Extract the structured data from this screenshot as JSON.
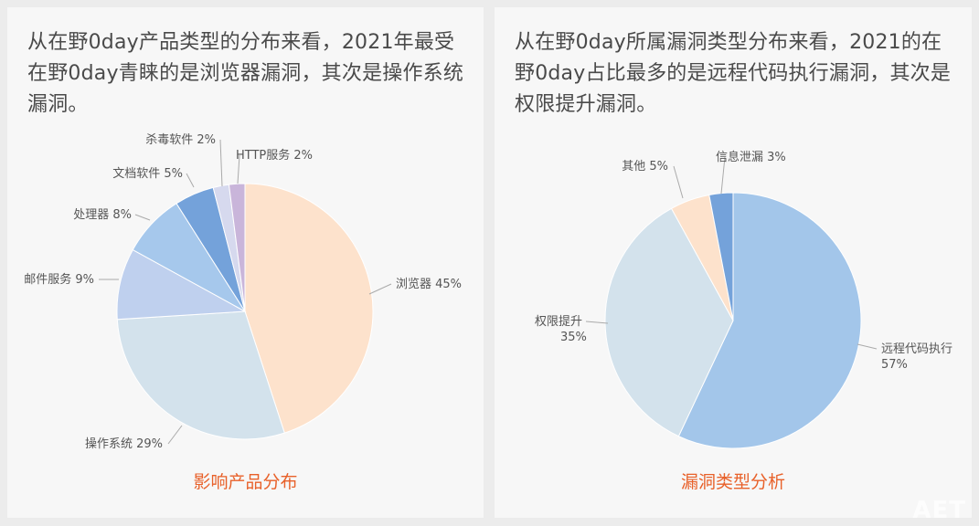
{
  "panels": [
    {
      "description": "从在野0day产品类型的分布来看，2021年最受在野0day青睐的是浏览器漏洞，其次是操作系统漏洞。",
      "chart_title": "影响产品分布"
    },
    {
      "description": "从在野0day所属漏洞类型分布来看，2021的在野0day占比最多的是远程代码执行漏洞，其次是权限提升漏洞。",
      "chart_title": "漏洞类型分析"
    }
  ],
  "watermark": "AET",
  "chart_data": [
    {
      "type": "pie",
      "title": "影响产品分布",
      "slices": [
        {
          "label": "浏览器",
          "value": 45,
          "value_text": "45%",
          "color": "#fde2cc"
        },
        {
          "label": "操作系统",
          "value": 29,
          "value_text": "29%",
          "color": "#d3e2ec"
        },
        {
          "label": "邮件服务",
          "value": 9,
          "value_text": "9%",
          "color": "#bfd0ee"
        },
        {
          "label": "处理器",
          "value": 8,
          "value_text": "8%",
          "color": "#a6c8ec"
        },
        {
          "label": "文档软件",
          "value": 5,
          "value_text": "5%",
          "color": "#74a2da"
        },
        {
          "label": "杀毒软件",
          "value": 2,
          "value_text": "2%",
          "color": "#d6d9ee"
        },
        {
          "label": "HTTP服务",
          "value": 2,
          "value_text": "2%",
          "color": "#c9b5da"
        }
      ]
    },
    {
      "type": "pie",
      "title": "漏洞类型分析",
      "slices": [
        {
          "label": "远程代码执行",
          "value": 57,
          "value_text": "57%",
          "color": "#a3c6ea"
        },
        {
          "label": "权限提升",
          "value": 35,
          "value_text": "35%",
          "color": "#d3e2ec"
        },
        {
          "label": "其他",
          "value": 5,
          "value_text": "5%",
          "color": "#fde2cc"
        },
        {
          "label": "信息泄漏",
          "value": 3,
          "value_text": "3%",
          "color": "#74a2da"
        }
      ]
    }
  ]
}
